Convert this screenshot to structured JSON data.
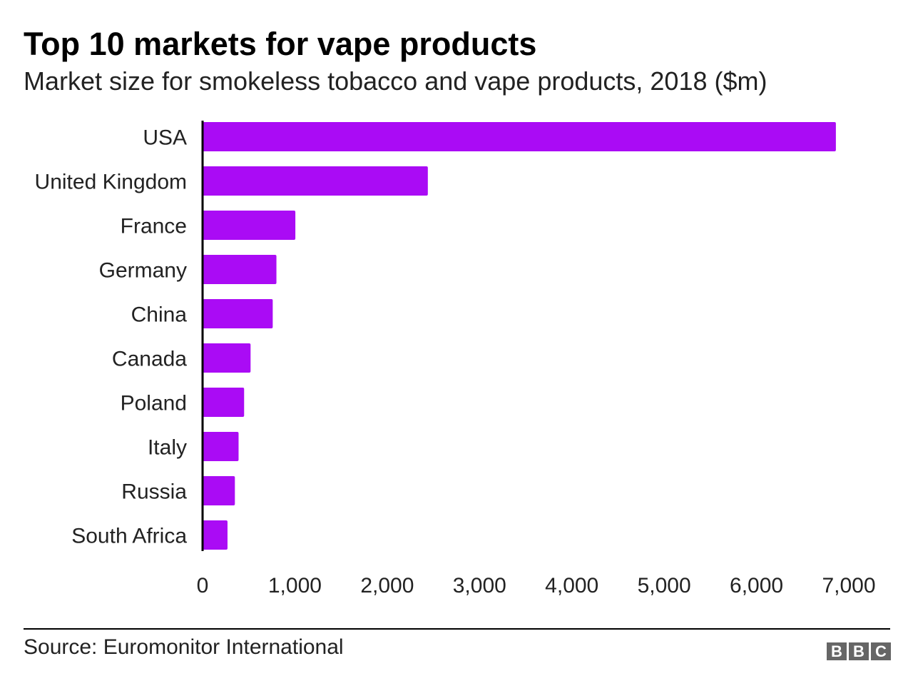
{
  "header": {
    "title": "Top 10 markets for vape products",
    "subtitle": "Market size for smokeless tobacco and vape products, 2018 ($m)"
  },
  "footer": {
    "source": "Source: Euromonitor International",
    "logo": "BBC"
  },
  "chart_data": {
    "type": "bar",
    "orientation": "horizontal",
    "title": "Top 10 markets for vape products",
    "subtitle": "Market size for smokeless tobacco and vape products, 2018 ($m)",
    "categories": [
      "USA",
      "United Kingdom",
      "France",
      "Germany",
      "China",
      "Canada",
      "Poland",
      "Italy",
      "Russia",
      "South Africa"
    ],
    "values": [
      6860,
      2440,
      1005,
      800,
      760,
      520,
      450,
      390,
      350,
      270
    ],
    "xlim": [
      0,
      7000
    ],
    "xticks": [
      "0",
      "1,000",
      "2,000",
      "3,000",
      "4,000",
      "5,000",
      "6,000",
      "7,000"
    ],
    "grid": false,
    "bar_color": "#aa0bf5"
  }
}
